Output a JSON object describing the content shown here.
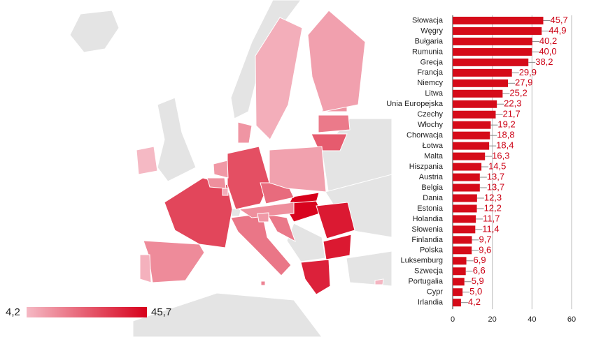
{
  "chart_data": {
    "type": "bar",
    "orientation": "horizontal",
    "categories": [
      "Słowacja",
      "Węgry",
      "Bułgaria",
      "Rumunia",
      "Grecja",
      "Francja",
      "Niemcy",
      "Litwa",
      "Unia Europejska",
      "Czechy",
      "Włochy",
      "Chorwacja",
      "Łotwa",
      "Malta",
      "Hiszpania",
      "Austria",
      "Belgia",
      "Dania",
      "Estonia",
      "Holandia",
      "Słowenia",
      "Finlandia",
      "Polska",
      "Luksemburg",
      "Szwecja",
      "Portugalia",
      "Cypr",
      "Irlandia"
    ],
    "values": [
      45.7,
      44.9,
      40.2,
      40.0,
      38.2,
      29.9,
      27.9,
      25.2,
      22.3,
      21.7,
      19.2,
      18.8,
      18.4,
      16.3,
      14.5,
      13.7,
      13.7,
      12.3,
      12.2,
      11.7,
      11.4,
      9.7,
      9.6,
      6.9,
      6.6,
      5.9,
      5.0,
      4.2
    ],
    "value_labels": [
      "45,7",
      "44,9",
      "40,2",
      "40,0",
      "38,2",
      "29,9",
      "27,9",
      "25,2",
      "22,3",
      "21,7",
      "19,2",
      "18,8",
      "18,4",
      "16,3",
      "14,5",
      "13,7",
      "13,7",
      "12,3",
      "12,2",
      "11,7",
      "11,4",
      "9,7",
      "9,6",
      "6,9",
      "6,6",
      "5,9",
      "5,0",
      "4,2"
    ],
    "color": "#d50b19",
    "label_color": "#cc0014",
    "xlim": [
      0,
      60
    ],
    "xticks": [
      0,
      20,
      40,
      60
    ],
    "grid": true,
    "legend": {
      "min": {
        "value": 4.2,
        "label": "4,2"
      },
      "max": {
        "value": 45.7,
        "label": "45,7"
      },
      "min_color": "#f5b9c4",
      "max_color": "#d7001b"
    }
  }
}
